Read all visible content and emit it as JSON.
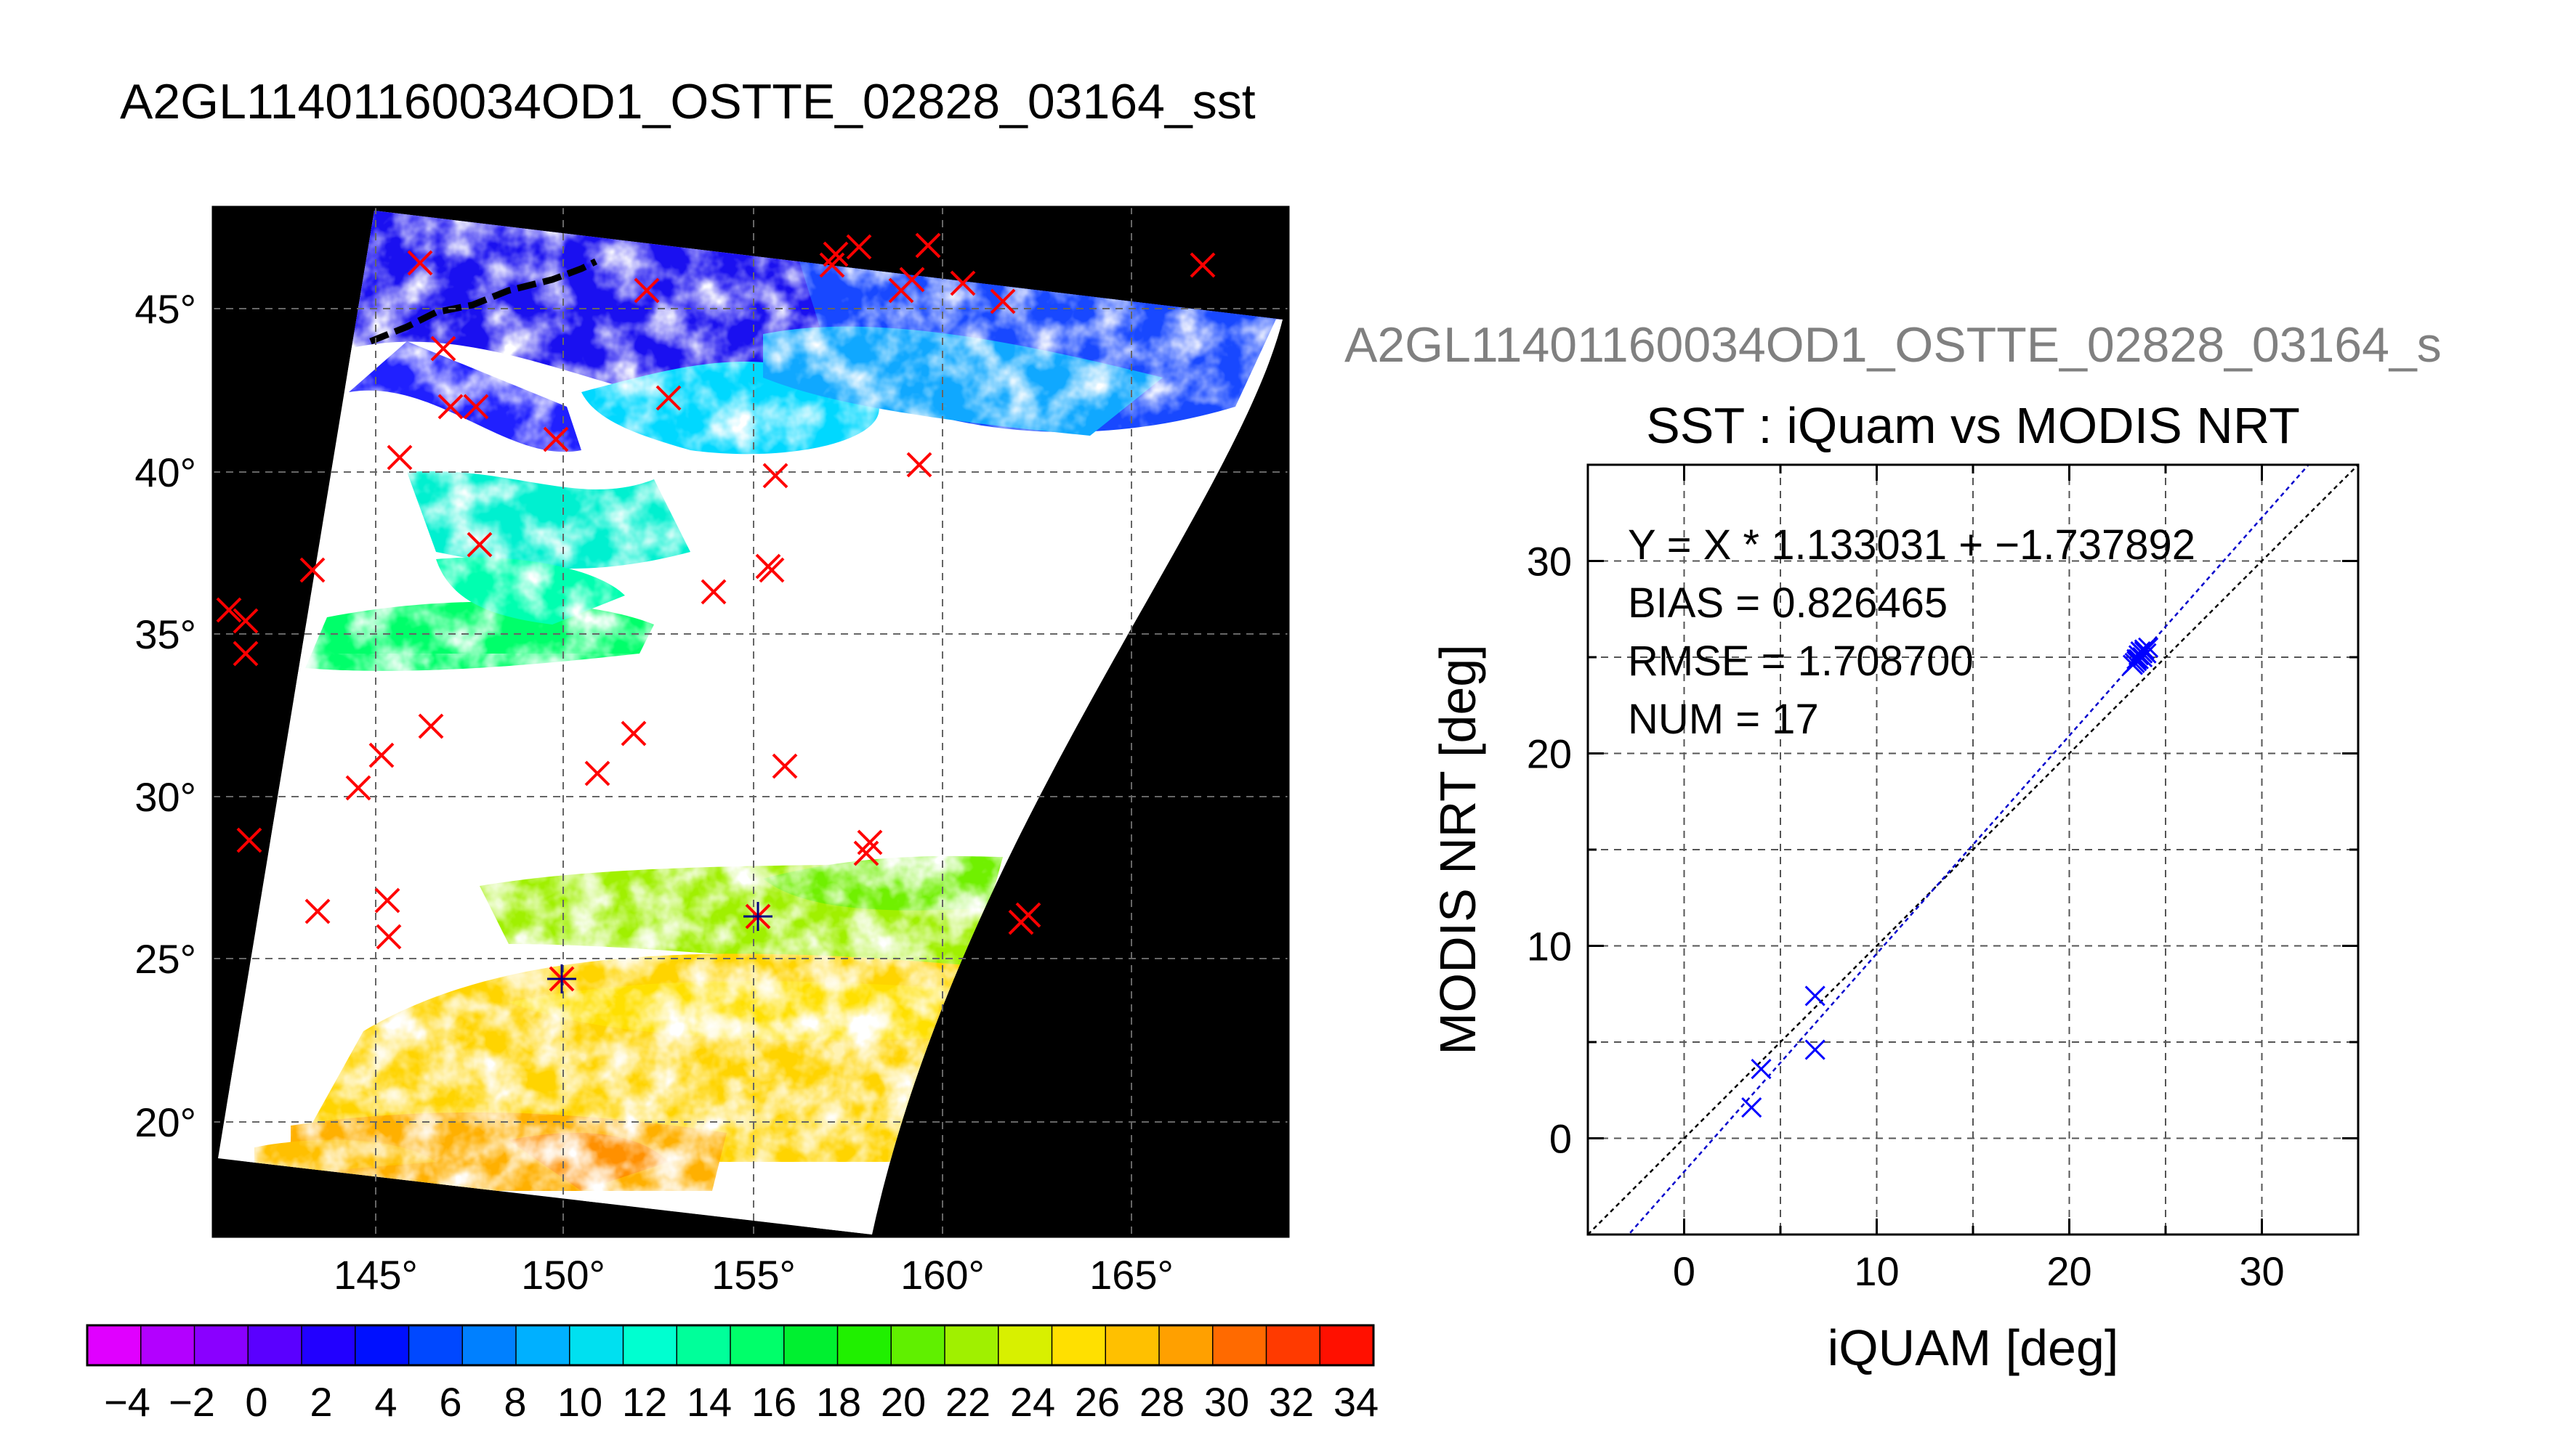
{
  "main_title": "A2GL11401160034OD1_OSTTE_02828_03164_sst",
  "map": {
    "lon_labels": [
      "145°",
      "150°",
      "155°",
      "160°",
      "165°"
    ],
    "lat_labels": [
      "20°",
      "25°",
      "30°",
      "35°",
      "40°",
      "45°"
    ],
    "colorbar_ticks": [
      "−4",
      "−2",
      "0",
      "2",
      "4",
      "6",
      "8",
      "10",
      "12",
      "14",
      "16",
      "18",
      "20",
      "22",
      "24",
      "26",
      "28",
      "30",
      "32",
      "34"
    ],
    "colorbar_colors": [
      "#e000ff",
      "#b300ff",
      "#8a00ff",
      "#5a00ff",
      "#2200ff",
      "#0010ff",
      "#0048ff",
      "#0080ff",
      "#00b0ff",
      "#00e0f0",
      "#00ffd0",
      "#00ff9a",
      "#00ff6a",
      "#00f030",
      "#20f000",
      "#60f000",
      "#a0f000",
      "#d8f000",
      "#ffe000",
      "#ffc000",
      "#ffa000",
      "#ff6a00",
      "#ff3a00",
      "#ff1000"
    ],
    "marker_color": "#ff0000",
    "matchup_color": "#000080"
  },
  "scatter_panel_title": "A2GL11401160034OD1_OSTTE_02828_03164_s",
  "chart_data": {
    "type": "scatter",
    "title": "SST : iQuam vs MODIS NRT",
    "xlabel": "iQUAM [deg]",
    "ylabel": "MODIS NRT [deg]",
    "xlim": [
      -5,
      35
    ],
    "ylim": [
      -5,
      35
    ],
    "xticks": [
      "0",
      "10",
      "20",
      "30"
    ],
    "yticks": [
      "0",
      "10",
      "20",
      "30"
    ],
    "grid": true,
    "annotations": [
      "Y = X * 1.133031 + −1.737892",
      "BIAS = 0.826465",
      "RMSE = 1.708700",
      "NUM = 17"
    ],
    "fit": {
      "slope": 1.133031,
      "intercept": -1.737892
    },
    "series": [
      {
        "x": [
          3.5,
          4.0,
          6.8,
          6.8,
          23.3,
          23.5,
          23.6,
          23.7,
          23.8,
          23.9,
          24.0,
          23.4,
          23.6,
          23.8,
          23.5,
          23.9,
          24.1
        ],
        "y": [
          1.6,
          3.6,
          7.4,
          4.6,
          24.6,
          24.8,
          25.1,
          25.3,
          25.0,
          25.4,
          25.2,
          24.7,
          24.9,
          25.2,
          24.9,
          25.3,
          25.5
        ],
        "color": "#0000ff"
      }
    ],
    "one_to_one_color": "#000000",
    "fit_color": "#0000cc"
  }
}
